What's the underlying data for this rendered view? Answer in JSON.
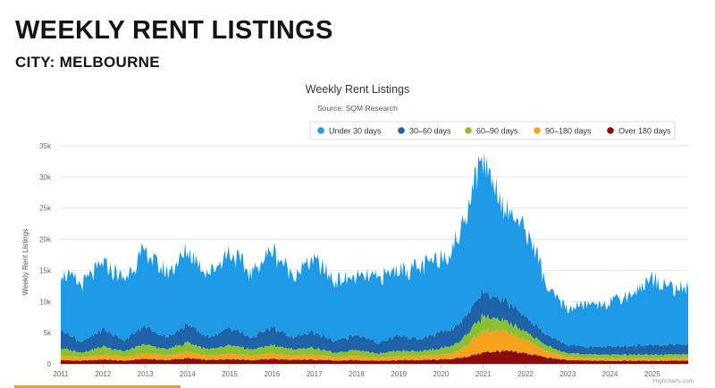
{
  "page": {
    "heading": "WEEKLY RENT LISTINGS",
    "subheading": "CITY: MELBOURNE",
    "accent_color": "#f39a2b"
  },
  "chart_data": {
    "type": "area",
    "stacking": "normal",
    "title": "Weekly Rent Listings",
    "subtitle": "Source: SQM Research",
    "ylabel": "Weekly Rent Listings",
    "xlabel": "",
    "ylim": [
      0,
      35000
    ],
    "xlim": [
      2011.0,
      2025.85
    ],
    "y_ticks": [
      0,
      5000,
      10000,
      15000,
      20000,
      25000,
      30000,
      35000
    ],
    "y_tick_labels": [
      "0",
      "5k",
      "10k",
      "15k",
      "20k",
      "25k",
      "30k",
      "35k"
    ],
    "x_ticks": [
      2011,
      2012,
      2013,
      2014,
      2015,
      2016,
      2017,
      2018,
      2019,
      2020,
      2021,
      2022,
      2023,
      2024,
      2025
    ],
    "x_tick_labels": [
      "2011",
      "2012",
      "2013",
      "2014",
      "2015",
      "2016",
      "2017",
      "2018",
      "2019",
      "2020",
      "2021",
      "2022",
      "2023",
      "2024",
      "2025"
    ],
    "grid": true,
    "legend_position": "top-right",
    "credits": "Highcharts.com",
    "x": [
      2011.0,
      2011.5,
      2012.0,
      2012.5,
      2013.0,
      2013.5,
      2014.0,
      2014.5,
      2015.0,
      2015.5,
      2016.0,
      2016.5,
      2017.0,
      2017.5,
      2018.0,
      2018.5,
      2019.0,
      2019.5,
      2020.0,
      2020.25,
      2020.5,
      2020.75,
      2021.0,
      2021.25,
      2021.5,
      2021.75,
      2022.0,
      2022.25,
      2022.5,
      2022.75,
      2023.0,
      2023.5,
      2024.0,
      2024.5,
      2025.0,
      2025.5,
      2025.85
    ],
    "series": [
      {
        "name": "Over 180 days",
        "color": "#8b0a0a",
        "values": [
          600,
          500,
          700,
          500,
          800,
          600,
          900,
          600,
          800,
          600,
          800,
          600,
          700,
          500,
          600,
          500,
          600,
          600,
          700,
          800,
          1000,
          1400,
          1800,
          2000,
          2000,
          1900,
          1700,
          1400,
          1000,
          800,
          600,
          500,
          500,
          500,
          500,
          500,
          500
        ]
      },
      {
        "name": "90–180 days",
        "color": "#f6a21c",
        "values": [
          700,
          500,
          800,
          600,
          900,
          700,
          1000,
          700,
          900,
          700,
          900,
          700,
          800,
          500,
          700,
          500,
          600,
          600,
          700,
          900,
          1400,
          2500,
          3500,
          3300,
          3000,
          2700,
          2200,
          1600,
          1000,
          700,
          500,
          400,
          400,
          400,
          400,
          400,
          400
        ]
      },
      {
        "name": "60–90 days",
        "color": "#8bc034",
        "values": [
          1200,
          800,
          1300,
          900,
          1400,
          1000,
          1500,
          1000,
          1300,
          1000,
          1300,
          1000,
          1100,
          700,
          1000,
          700,
          900,
          800,
          1000,
          1200,
          1500,
          2000,
          2400,
          2000,
          1700,
          1500,
          1300,
          1100,
          900,
          700,
          600,
          600,
          600,
          600,
          600,
          600,
          600
        ]
      },
      {
        "name": "30–60 days",
        "color": "#1e63a8",
        "values": [
          3000,
          1700,
          2800,
          1800,
          2900,
          1900,
          2900,
          1900,
          2800,
          1900,
          2800,
          1900,
          2600,
          1800,
          2500,
          1700,
          2500,
          1900,
          2600,
          2700,
          3000,
          3600,
          3900,
          3600,
          3300,
          2900,
          2400,
          2000,
          1700,
          1500,
          1300,
          1200,
          1300,
          1400,
          1600,
          1600,
          1600
        ]
      },
      {
        "name": "Under 30 days",
        "color": "#1f9ae6",
        "values": [
          9300,
          9200,
          10500,
          9800,
          12000,
          10300,
          11700,
          10300,
          12200,
          10200,
          12400,
          10000,
          11600,
          9600,
          9200,
          10300,
          10600,
          11300,
          12000,
          12600,
          15000,
          19500,
          21400,
          18600,
          14900,
          14500,
          13800,
          12000,
          7500,
          6500,
          5800,
          6900,
          7000,
          8300,
          10700,
          9100,
          9000
        ]
      }
    ]
  }
}
